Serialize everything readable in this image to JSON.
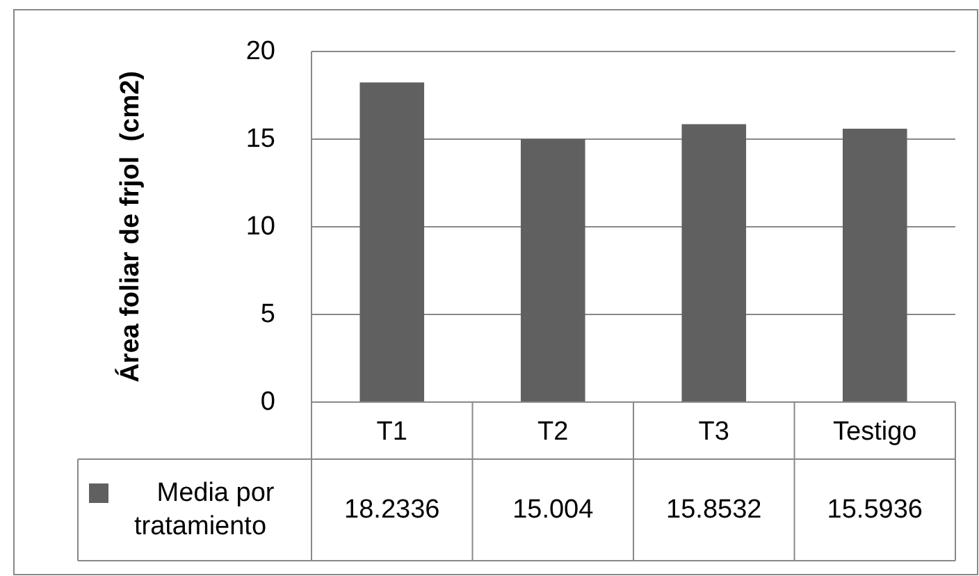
{
  "chart_data": {
    "type": "bar",
    "ylabel": "Área foliar de frjol  (cm2)",
    "categories": [
      "T1",
      "T2",
      "T3",
      "Testigo"
    ],
    "series": [
      {
        "name": "Media por tratamiento",
        "color": "#606060",
        "values": [
          18.2336,
          15.004,
          15.8532,
          15.5936
        ]
      }
    ],
    "ylim": [
      0,
      20
    ],
    "yticks": [
      0,
      5,
      10,
      15,
      20
    ],
    "grid": "y",
    "legend": "bottom",
    "data_labels": true
  }
}
